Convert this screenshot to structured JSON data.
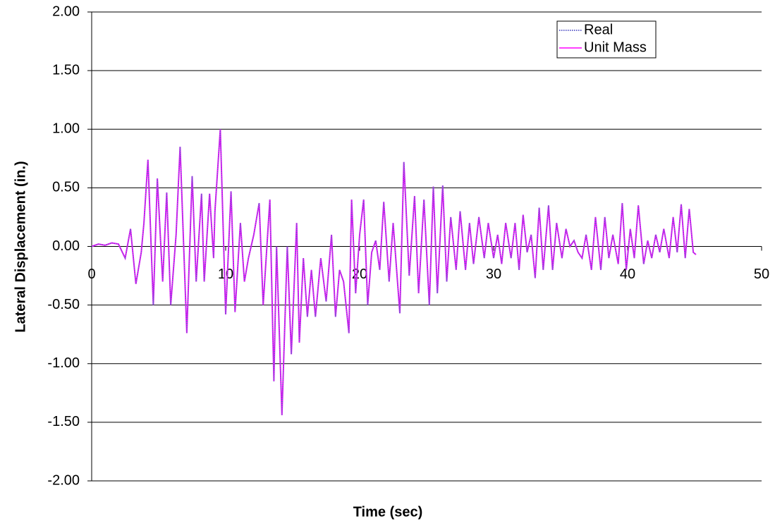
{
  "chart_data": {
    "type": "line",
    "xlabel": "Time (sec)",
    "ylabel": "Lateral Displacement (in.)",
    "x": [
      0,
      0.5,
      1,
      1.5,
      2,
      2.5,
      2.9,
      3.3,
      3.7,
      3.9,
      4.2,
      4.6,
      4.9,
      5.3,
      5.6,
      5.9,
      6.3,
      6.6,
      7.1,
      7.5,
      7.8,
      8.2,
      8.4,
      8.8,
      9.1,
      9.2,
      9.6,
      10.0,
      10.4,
      10.7,
      11.1,
      11.4,
      11.7,
      12.1,
      12.5,
      12.8,
      13.3,
      13.6,
      13.8,
      14.2,
      14.6,
      14.9,
      15.3,
      15.5,
      15.8,
      16.1,
      16.4,
      16.7,
      17.1,
      17.5,
      17.9,
      18.2,
      18.5,
      18.8,
      19.2,
      19.4,
      19.7,
      20.0,
      20.3,
      20.6,
      20.9,
      21.2,
      21.5,
      21.8,
      22.2,
      22.5,
      23.0,
      23.3,
      23.7,
      24.1,
      24.4,
      24.8,
      25.2,
      25.5,
      25.8,
      26.2,
      26.5,
      26.8,
      27.2,
      27.5,
      27.9,
      28.2,
      28.5,
      28.9,
      29.3,
      29.6,
      30.0,
      30.3,
      30.6,
      30.9,
      31.3,
      31.6,
      31.9,
      32.2,
      32.5,
      32.8,
      33.1,
      33.4,
      33.7,
      34.1,
      34.4,
      34.7,
      35.1,
      35.4,
      35.7,
      36.0,
      36.3,
      36.6,
      36.9,
      37.3,
      37.6,
      38.0,
      38.3,
      38.6,
      38.9,
      39.3,
      39.6,
      39.9,
      40.2,
      40.5,
      40.8,
      41.2,
      41.5,
      41.8,
      42.1,
      42.4,
      42.7,
      43.1,
      43.4,
      43.7,
      44.0,
      44.3,
      44.6,
      44.9,
      45.1
    ],
    "series": [
      {
        "name": "Real",
        "color": "#6666cc",
        "dashed": true,
        "values": [
          0,
          0.02,
          0.01,
          0.03,
          0.02,
          -0.1,
          0.15,
          -0.32,
          -0.05,
          0.2,
          0.74,
          -0.5,
          0.58,
          -0.3,
          0.46,
          -0.5,
          0.1,
          0.85,
          -0.74,
          0.6,
          -0.3,
          0.45,
          -0.3,
          0.45,
          -0.1,
          0.3,
          1.0,
          -0.58,
          0.47,
          -0.56,
          0.2,
          -0.3,
          -0.1,
          0.1,
          0.37,
          -0.5,
          0.4,
          -1.15,
          0,
          -1.44,
          0,
          -0.92,
          0.2,
          -0.82,
          -0.1,
          -0.6,
          -0.2,
          -0.6,
          -0.1,
          -0.47,
          0.1,
          -0.6,
          -0.2,
          -0.3,
          -0.74,
          0.4,
          -0.4,
          0.1,
          0.4,
          -0.5,
          -0.05,
          0.05,
          -0.2,
          0.38,
          -0.3,
          0.2,
          -0.57,
          0.72,
          -0.25,
          0.43,
          -0.4,
          0.4,
          -0.5,
          0.51,
          -0.4,
          0.52,
          -0.3,
          0.25,
          -0.2,
          0.3,
          -0.2,
          0.2,
          -0.15,
          0.25,
          -0.1,
          0.2,
          -0.1,
          0.1,
          -0.15,
          0.2,
          -0.1,
          0.2,
          -0.2,
          0.27,
          -0.05,
          0.1,
          -0.27,
          0.33,
          -0.2,
          0.35,
          -0.2,
          0.2,
          -0.1,
          0.15,
          0,
          0.05,
          -0.05,
          -0.1,
          0.1,
          -0.2,
          0.25,
          -0.2,
          0.25,
          -0.1,
          0.1,
          -0.15,
          0.37,
          -0.2,
          0.15,
          -0.1,
          0.35,
          -0.15,
          0.05,
          -0.1,
          0.1,
          -0.05,
          0.15,
          -0.1,
          0.25,
          -0.05,
          0.36,
          -0.1,
          0.32,
          -0.05,
          -0.07
        ]
      },
      {
        "name": "Unit Mass",
        "color": "#ff00ff",
        "values": [
          0,
          0.02,
          0.01,
          0.03,
          0.02,
          -0.1,
          0.15,
          -0.32,
          -0.05,
          0.2,
          0.74,
          -0.5,
          0.58,
          -0.3,
          0.46,
          -0.5,
          0.1,
          0.85,
          -0.74,
          0.6,
          -0.3,
          0.45,
          -0.3,
          0.45,
          -0.1,
          0.3,
          1.0,
          -0.58,
          0.47,
          -0.56,
          0.2,
          -0.3,
          -0.1,
          0.1,
          0.37,
          -0.5,
          0.4,
          -1.15,
          0,
          -1.44,
          0,
          -0.92,
          0.2,
          -0.82,
          -0.1,
          -0.6,
          -0.2,
          -0.6,
          -0.1,
          -0.47,
          0.1,
          -0.6,
          -0.2,
          -0.3,
          -0.74,
          0.4,
          -0.4,
          0.1,
          0.4,
          -0.5,
          -0.05,
          0.05,
          -0.2,
          0.38,
          -0.3,
          0.2,
          -0.57,
          0.72,
          -0.25,
          0.43,
          -0.4,
          0.4,
          -0.5,
          0.51,
          -0.4,
          0.52,
          -0.3,
          0.25,
          -0.2,
          0.3,
          -0.2,
          0.2,
          -0.15,
          0.25,
          -0.1,
          0.2,
          -0.1,
          0.1,
          -0.15,
          0.2,
          -0.1,
          0.2,
          -0.2,
          0.27,
          -0.05,
          0.1,
          -0.27,
          0.33,
          -0.2,
          0.35,
          -0.2,
          0.2,
          -0.1,
          0.15,
          0,
          0.05,
          -0.05,
          -0.1,
          0.1,
          -0.2,
          0.25,
          -0.2,
          0.25,
          -0.1,
          0.1,
          -0.15,
          0.37,
          -0.2,
          0.15,
          -0.1,
          0.35,
          -0.15,
          0.05,
          -0.1,
          0.1,
          -0.05,
          0.15,
          -0.1,
          0.25,
          -0.05,
          0.36,
          -0.1,
          0.32,
          -0.05,
          -0.07
        ]
      }
    ],
    "xlim": [
      0,
      50
    ],
    "xticks": [
      0,
      10,
      20,
      30,
      40,
      50
    ],
    "ylim": [
      -2,
      2
    ],
    "yticks": [
      {
        "value": -2,
        "label": "-2.00"
      },
      {
        "value": -1.5,
        "label": "-1.50"
      },
      {
        "value": -1,
        "label": "-1.00"
      },
      {
        "value": -0.5,
        "label": "-0.50"
      },
      {
        "value": 0,
        "label": "0.00"
      },
      {
        "value": 0.5,
        "label": "0.50"
      },
      {
        "value": 1,
        "label": "1.00"
      },
      {
        "value": 1.5,
        "label": "1.50"
      },
      {
        "value": 2,
        "label": "2.00"
      }
    ],
    "grid": true,
    "legend": "upper right"
  }
}
